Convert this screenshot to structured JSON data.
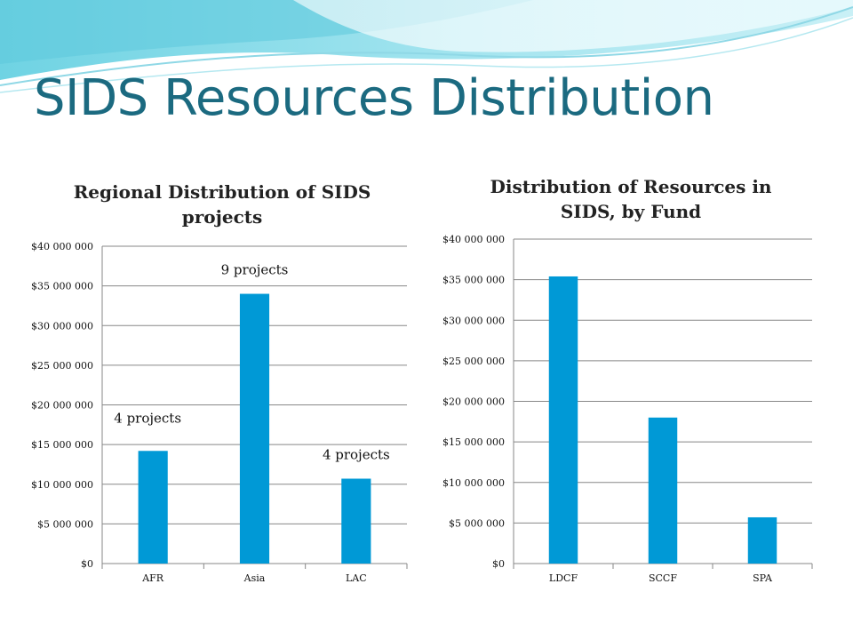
{
  "slide": {
    "title": "SIDS Resources Distribution",
    "colors": {
      "title": "#1b6a80",
      "bar": "#0099d6",
      "grid": "#878787"
    }
  },
  "chart_data": [
    {
      "type": "bar",
      "title": "Regional Distribution of SIDS projects",
      "categories": [
        "AFR",
        "Asia",
        "LAC"
      ],
      "values": [
        14200000,
        34000000,
        10700000
      ],
      "annotations": [
        "4 projects",
        "9 projects",
        "4 projects"
      ],
      "xlabel": "",
      "ylabel": "",
      "ylim": [
        0,
        40000000
      ],
      "yticks": [
        0,
        5000000,
        10000000,
        15000000,
        20000000,
        25000000,
        30000000,
        35000000,
        40000000
      ],
      "ytick_labels": [
        "$0",
        "$5 000 000",
        "$10 000 000",
        "$15 000 000",
        "$20 000 000",
        "$25 000 000",
        "$30 000 000",
        "$35 000 000",
        "$40 000 000"
      ],
      "grid": true,
      "legend": "none"
    },
    {
      "type": "bar",
      "title": "Distribution of Resources in SIDS, by Fund",
      "categories": [
        "LDCF",
        "SCCF",
        "SPA"
      ],
      "values": [
        35400000,
        18000000,
        5700000
      ],
      "xlabel": "",
      "ylabel": "",
      "ylim": [
        0,
        40000000
      ],
      "yticks": [
        0,
        5000000,
        10000000,
        15000000,
        20000000,
        25000000,
        30000000,
        35000000,
        40000000
      ],
      "ytick_labels": [
        "$0",
        "$5 000 000",
        "$10 000 000",
        "$15 000 000",
        "$20 000 000",
        "$25 000 000",
        "$30 000 000",
        "$35 000 000",
        "$40 000 000"
      ],
      "grid": true,
      "legend": "none"
    }
  ]
}
